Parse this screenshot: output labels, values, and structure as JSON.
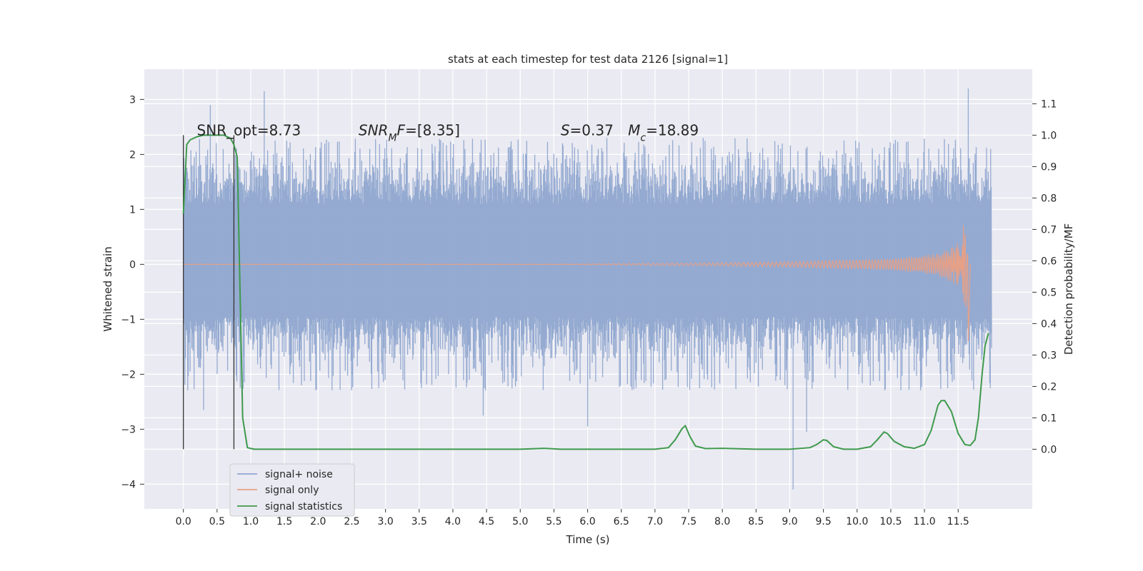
{
  "chart_data": {
    "type": "line",
    "title": "stats at each timestep for test data 2126 [signal=1]",
    "xlabel": "Time (s)",
    "ylabel": "Whitened strain",
    "y2label": "Detection probability/MF",
    "xlim": [
      -0.58,
      12.6
    ],
    "ylim": [
      -4.45,
      3.55
    ],
    "y2lim": [
      -0.19,
      1.21
    ],
    "x_ticks": [
      0.0,
      0.5,
      1.0,
      1.5,
      2.0,
      2.5,
      3.0,
      3.5,
      4.0,
      4.5,
      5.0,
      5.5,
      6.0,
      6.5,
      7.0,
      7.5,
      8.0,
      8.5,
      9.0,
      9.5,
      10.0,
      10.5,
      11.0,
      11.5
    ],
    "x_tick_labels": [
      "0.0",
      "0.5",
      "1.0",
      "1.5",
      "2.0",
      "2.5",
      "3.0",
      "3.5",
      "4.0",
      "4.5",
      "5.0",
      "5.5",
      "6.0",
      "6.5",
      "7.0",
      "7.5",
      "8.0",
      "8.5",
      "9.0",
      "9.5",
      "10.0",
      "10.5",
      "11.0",
      "11.5"
    ],
    "y_ticks": [
      3,
      2,
      1,
      0,
      -1,
      -2,
      -3,
      -4
    ],
    "y_tick_labels": [
      "3",
      "2",
      "1",
      "0",
      "−1",
      "−2",
      "−3",
      "−4"
    ],
    "y2_ticks": [
      1.1,
      1.0,
      0.9,
      0.8,
      0.7,
      0.6,
      0.5,
      0.4,
      0.3,
      0.2,
      0.1,
      0.0
    ],
    "y2_tick_labels": [
      "1.1",
      "1.0",
      "0.9",
      "0.8",
      "0.7",
      "0.6",
      "0.5",
      "0.4",
      "0.3",
      "0.2",
      "0.1",
      "0.0"
    ],
    "grid": true,
    "legend_position": "lower-left",
    "colors": {
      "background": "#eaeaf2",
      "grid": "#ffffff",
      "noise": "#8fa6cf",
      "signal": "#e5a088",
      "stats": "#3e9a4c",
      "marker": "#333333"
    },
    "series": [
      {
        "name": "signal+ noise",
        "kind": "noise",
        "t_start": 0.0,
        "t_end": 11.99,
        "typical_range": [
          -0.95,
          1.1
        ],
        "peak_range": [
          -2.3,
          2.3
        ],
        "outliers": [
          [
            1.2,
            3.15
          ],
          [
            0.4,
            2.9
          ],
          [
            11.65,
            3.2
          ],
          [
            9.05,
            -4.1
          ],
          [
            9.25,
            -3.05
          ],
          [
            6.0,
            -2.95
          ],
          [
            4.45,
            -2.75
          ],
          [
            0.3,
            -2.65
          ]
        ]
      },
      {
        "name": "signal only",
        "kind": "chirp",
        "t_start": 0.0,
        "t_merge": 11.65,
        "amplitude_envelope": [
          [
            7.5,
            0.02
          ],
          [
            9.0,
            0.05
          ],
          [
            10.5,
            0.1
          ],
          [
            11.2,
            0.2
          ],
          [
            11.5,
            0.4
          ],
          [
            11.62,
            0.9
          ],
          [
            11.65,
            1.4
          ]
        ],
        "ringdown_end": 11.68
      },
      {
        "name": "signal statistics",
        "axis": "right",
        "x": [
          0.0,
          0.05,
          0.1,
          0.2,
          0.3,
          0.5,
          0.6,
          0.7,
          0.75,
          0.8,
          0.88,
          0.95,
          1.05,
          2.0,
          3.0,
          4.0,
          5.0,
          5.35,
          5.6,
          6.0,
          7.0,
          7.2,
          7.3,
          7.4,
          7.45,
          7.52,
          7.6,
          7.75,
          8.0,
          8.5,
          9.0,
          9.3,
          9.4,
          9.5,
          9.55,
          9.65,
          9.8,
          10.0,
          10.2,
          10.3,
          10.4,
          10.45,
          10.55,
          10.7,
          10.85,
          11.0,
          11.1,
          11.2,
          11.25,
          11.3,
          11.4,
          11.5,
          11.6,
          11.68,
          11.75,
          11.8,
          11.86,
          11.9,
          11.95
        ],
        "y": [
          0.75,
          0.97,
          0.985,
          0.995,
          1.0,
          1.0,
          1.0,
          0.99,
          0.97,
          0.93,
          0.1,
          0.005,
          0.0,
          0.0,
          0.0,
          0.0,
          0.0,
          0.003,
          0.0,
          0.0,
          0.0,
          0.005,
          0.03,
          0.065,
          0.075,
          0.04,
          0.01,
          0.002,
          0.003,
          0.0,
          0.0,
          0.005,
          0.015,
          0.03,
          0.028,
          0.008,
          0.0,
          0.0,
          0.008,
          0.03,
          0.055,
          0.05,
          0.025,
          0.008,
          0.003,
          0.015,
          0.06,
          0.14,
          0.155,
          0.155,
          0.12,
          0.05,
          0.015,
          0.012,
          0.03,
          0.1,
          0.25,
          0.33,
          0.37
        ]
      }
    ],
    "vertical_markers": [
      {
        "x": 0.0
      },
      {
        "x": 0.75
      }
    ],
    "annotations": [
      {
        "id": "snr_opt",
        "parts": [
          {
            "t": "SNR_opt=8.73",
            "style": "normal"
          }
        ],
        "x": 0.2,
        "y2": 1.0
      },
      {
        "id": "snr_mf",
        "parts": [
          {
            "t": "SNR",
            "style": "italic"
          },
          {
            "t": "M",
            "style": "italic-sub"
          },
          {
            "t": "F",
            "style": "italic"
          },
          {
            "t": "=[8.35]",
            "style": "normal"
          }
        ],
        "x": 2.6,
        "y2": 1.0
      },
      {
        "id": "s_val",
        "parts": [
          {
            "t": "S",
            "style": "italic"
          },
          {
            "t": "=0.37",
            "style": "normal"
          }
        ],
        "x": 5.6,
        "y2": 1.0
      },
      {
        "id": "mc_val",
        "parts": [
          {
            "t": "M",
            "style": "italic"
          },
          {
            "t": "c",
            "style": "italic-sub"
          },
          {
            "t": "=18.89",
            "style": "normal"
          }
        ],
        "x": 6.6,
        "y2": 1.0
      }
    ]
  }
}
